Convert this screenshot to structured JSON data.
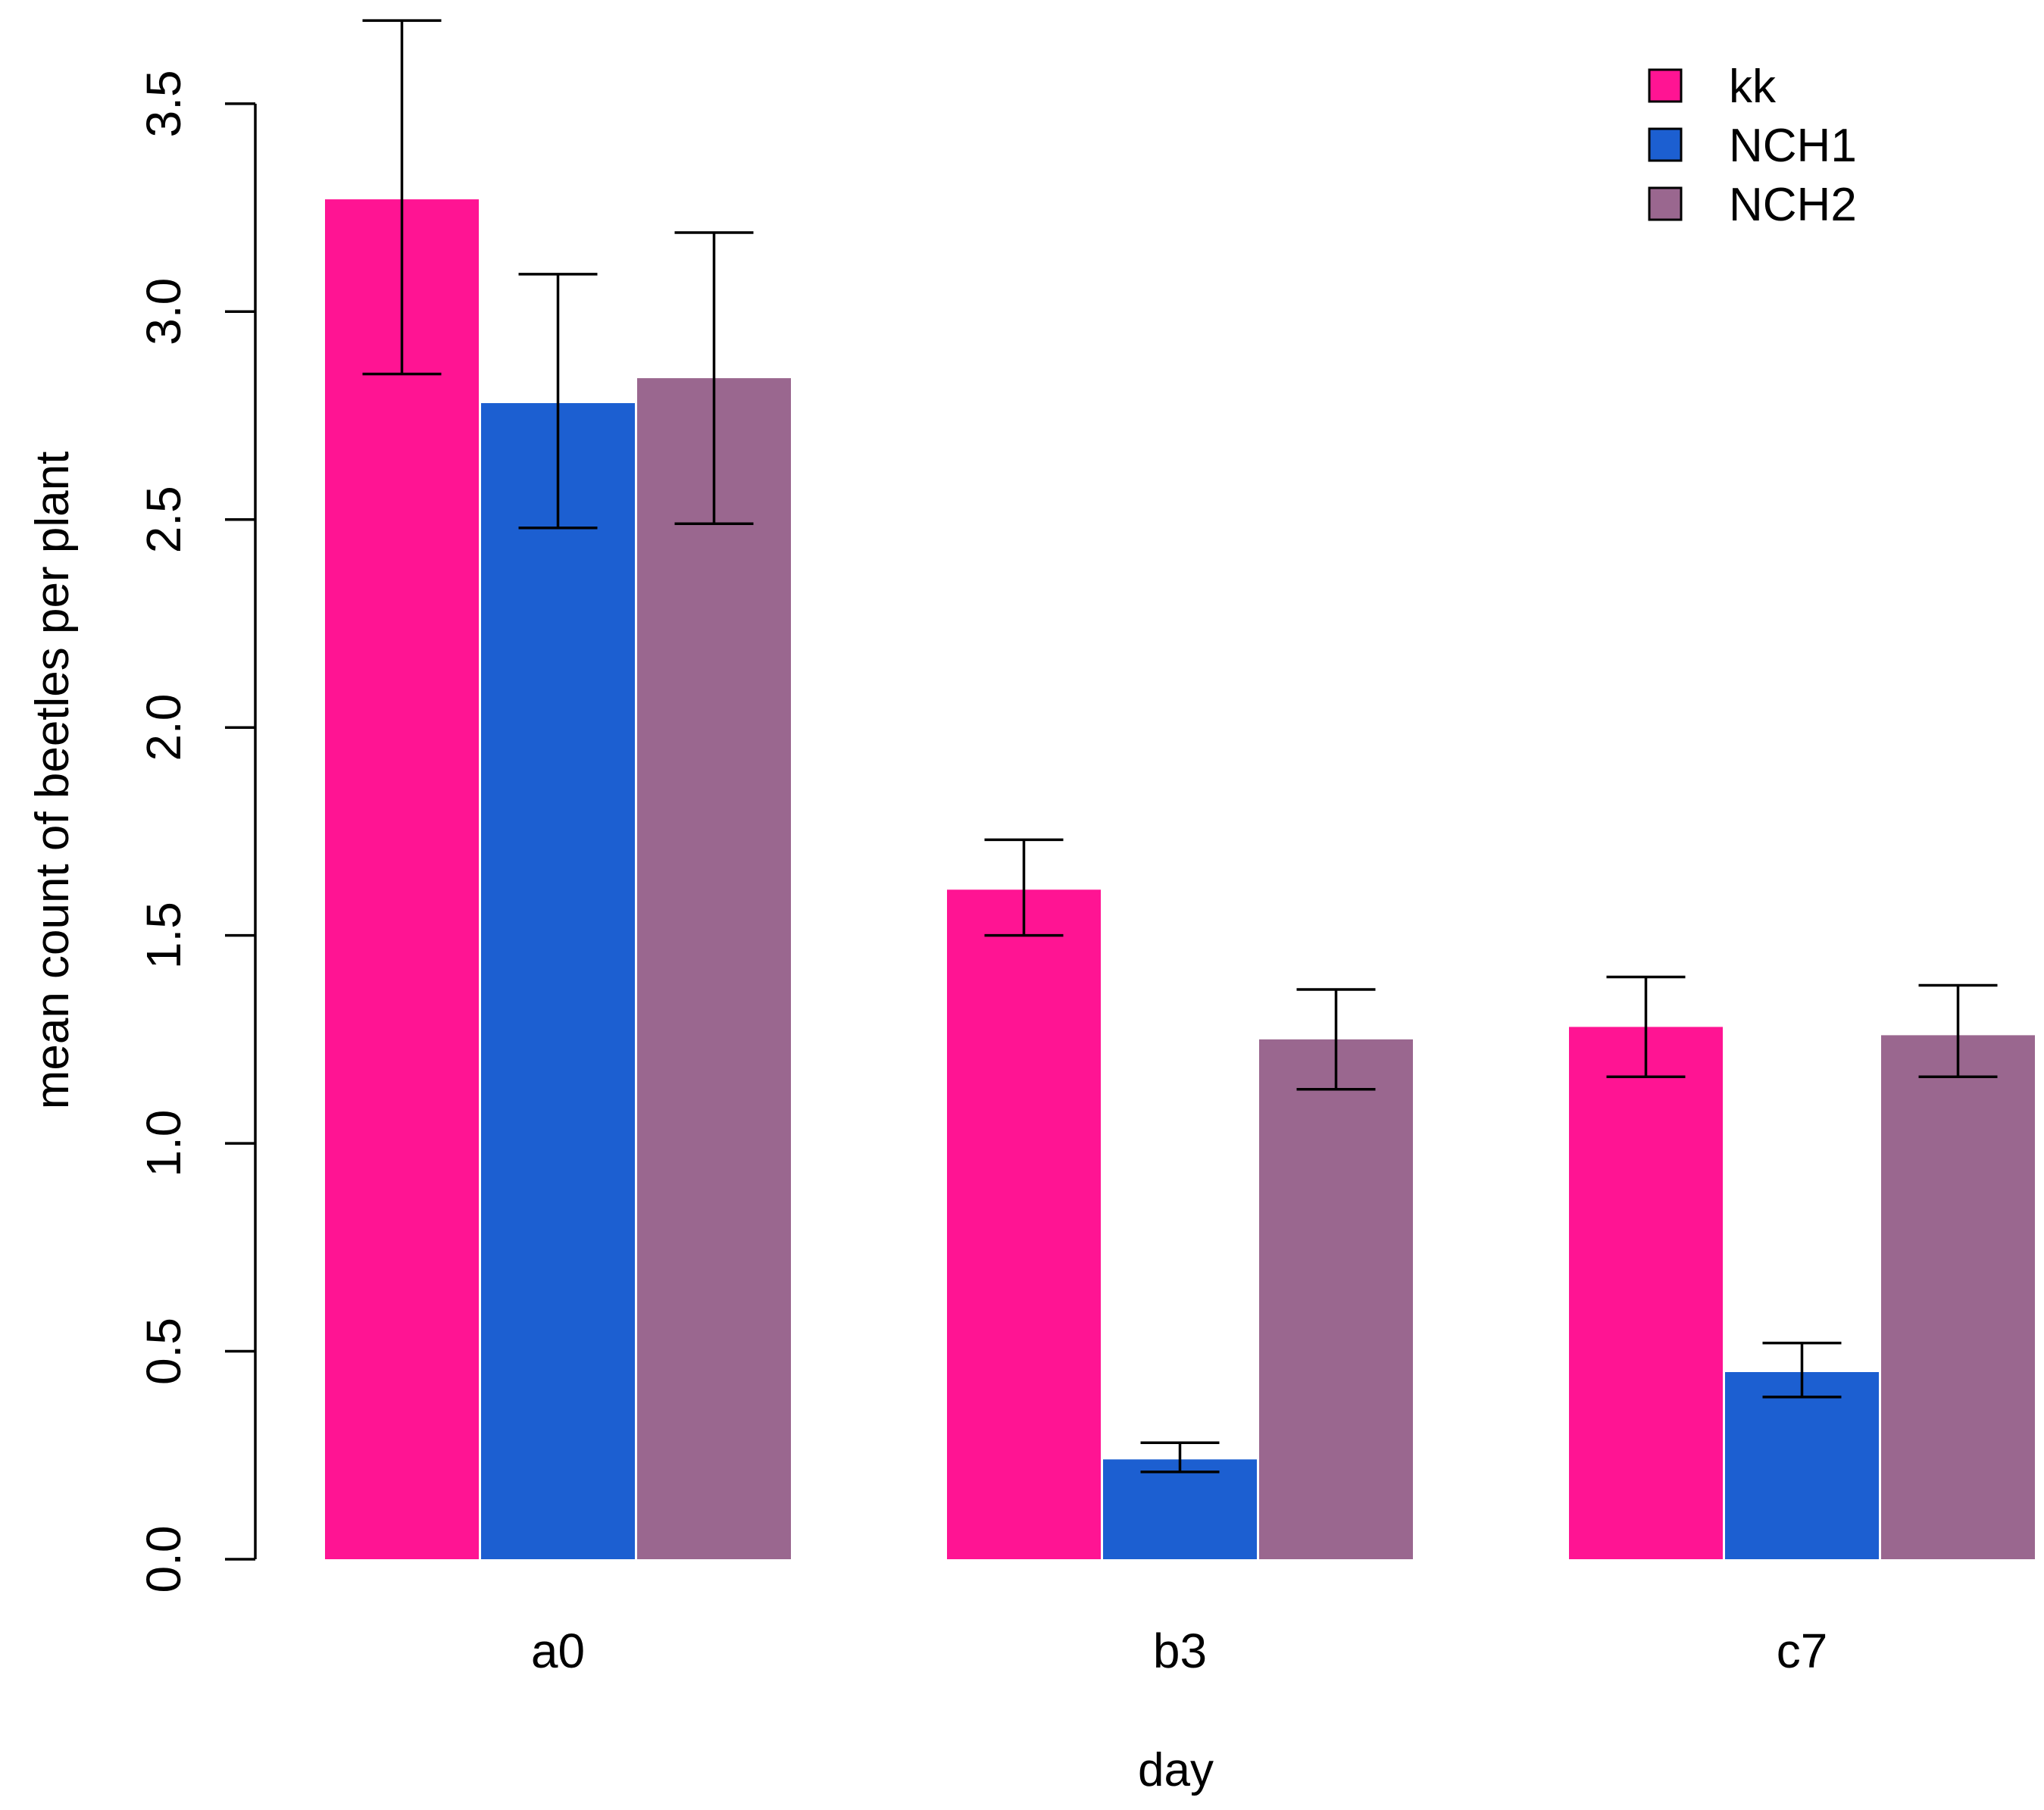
{
  "chart_data": {
    "type": "bar",
    "title": "",
    "xlabel": "day",
    "ylabel": "mean count of beetles per plant",
    "categories": [
      "a0",
      "b3",
      "c7"
    ],
    "ylim": [
      0,
      3.5
    ],
    "yticks": [
      0.0,
      0.5,
      1.0,
      1.5,
      2.0,
      2.5,
      3.0,
      3.5
    ],
    "ytick_labels": [
      "0.0",
      "0.5",
      "1.0",
      "1.5",
      "2.0",
      "2.5",
      "3.0",
      "3.5"
    ],
    "grid": false,
    "legend_position": "top-right",
    "series": [
      {
        "name": "kk",
        "color": "#ff1493",
        "values": [
          3.27,
          1.61,
          1.28
        ],
        "err_low": [
          2.85,
          1.5,
          1.16
        ],
        "err_high": [
          3.7,
          1.73,
          1.4
        ]
      },
      {
        "name": "NCH1",
        "color": "#1c5fd1",
        "values": [
          2.78,
          0.24,
          0.45
        ],
        "err_low": [
          2.48,
          0.21,
          0.39
        ],
        "err_high": [
          3.09,
          0.28,
          0.52
        ]
      },
      {
        "name": "NCH2",
        "color": "#9a678f",
        "values": [
          2.84,
          1.25,
          1.26
        ],
        "err_low": [
          2.49,
          1.13,
          1.16
        ],
        "err_high": [
          3.19,
          1.37,
          1.38
        ]
      }
    ]
  }
}
